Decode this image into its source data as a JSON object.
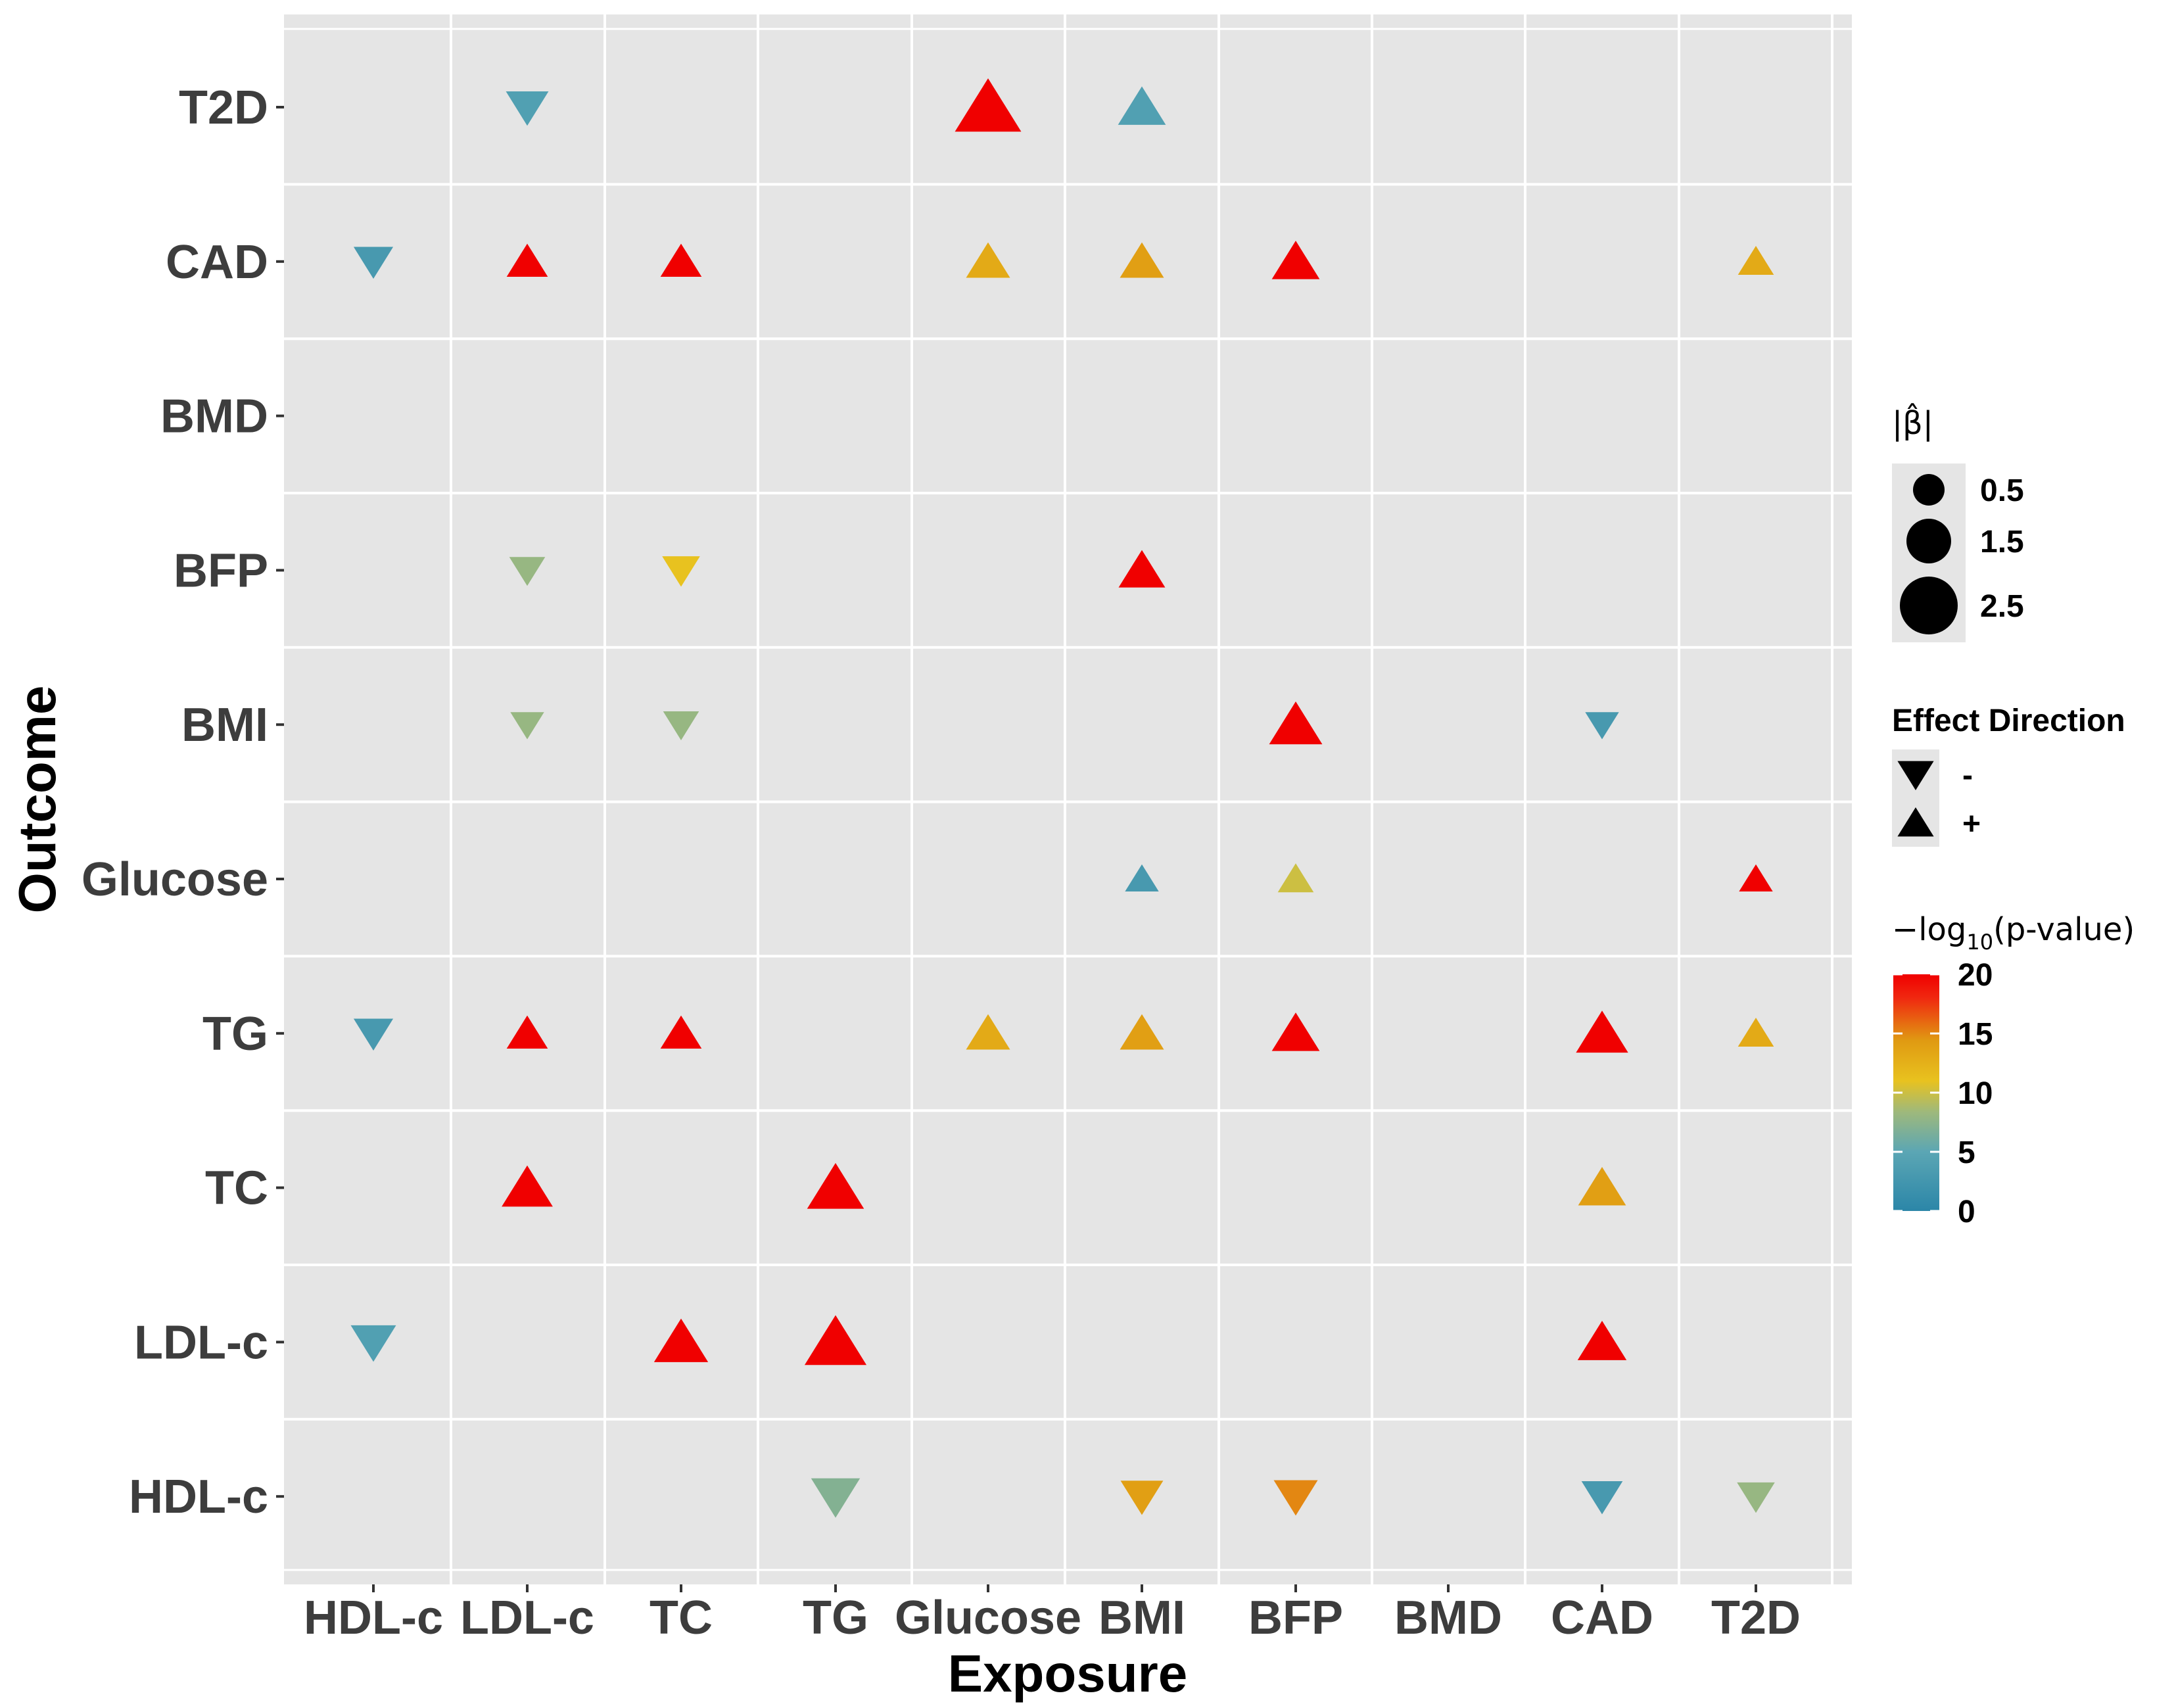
{
  "chart_data": {
    "type": "scatter",
    "subtype": "bubble-matrix",
    "xlabel": "Exposure",
    "ylabel": "Outcome",
    "x_categories": [
      "HDL-c",
      "LDL-c",
      "TC",
      "TG",
      "Glucose",
      "BMI",
      "BFP",
      "BMD",
      "CAD",
      "T2D"
    ],
    "y_categories": [
      "HDL-c",
      "LDL-c",
      "TC",
      "TG",
      "Glucose",
      "BMI",
      "BFP",
      "BMD",
      "CAD",
      "T2D"
    ],
    "points": [
      {
        "exposure": "LDL-c",
        "outcome": "T2D",
        "direction": "-",
        "beta": 0.8,
        "neglog10p": 4
      },
      {
        "exposure": "Glucose",
        "outcome": "T2D",
        "direction": "+",
        "beta": 3.3,
        "neglog10p": 20
      },
      {
        "exposure": "BMI",
        "outcome": "T2D",
        "direction": "+",
        "beta": 1.2,
        "neglog10p": 4
      },
      {
        "exposure": "HDL-c",
        "outcome": "CAD",
        "direction": "-",
        "beta": 0.6,
        "neglog10p": 3
      },
      {
        "exposure": "LDL-c",
        "outcome": "CAD",
        "direction": "+",
        "beta": 0.7,
        "neglog10p": 20
      },
      {
        "exposure": "TC",
        "outcome": "CAD",
        "direction": "+",
        "beta": 0.7,
        "neglog10p": 20
      },
      {
        "exposure": "Glucose",
        "outcome": "CAD",
        "direction": "+",
        "beta": 0.9,
        "neglog10p": 13
      },
      {
        "exposure": "BMI",
        "outcome": "CAD",
        "direction": "+",
        "beta": 0.9,
        "neglog10p": 14
      },
      {
        "exposure": "BFP",
        "outcome": "CAD",
        "direction": "+",
        "beta": 1.2,
        "neglog10p": 20
      },
      {
        "exposure": "T2D",
        "outcome": "CAD",
        "direction": "+",
        "beta": 0.4,
        "neglog10p": 13
      },
      {
        "exposure": "LDL-c",
        "outcome": "BFP",
        "direction": "-",
        "beta": 0.4,
        "neglog10p": 8
      },
      {
        "exposure": "TC",
        "outcome": "BFP",
        "direction": "-",
        "beta": 0.5,
        "neglog10p": 11
      },
      {
        "exposure": "BMI",
        "outcome": "BFP",
        "direction": "+",
        "beta": 1.1,
        "neglog10p": 20
      },
      {
        "exposure": "LDL-c",
        "outcome": "BMI",
        "direction": "-",
        "beta": 0.3,
        "neglog10p": 8
      },
      {
        "exposure": "TC",
        "outcome": "BMI",
        "direction": "-",
        "beta": 0.4,
        "neglog10p": 8
      },
      {
        "exposure": "BFP",
        "outcome": "BMI",
        "direction": "+",
        "beta": 1.7,
        "neglog10p": 20
      },
      {
        "exposure": "CAD",
        "outcome": "BMI",
        "direction": "-",
        "beta": 0.3,
        "neglog10p": 3
      },
      {
        "exposure": "BMI",
        "outcome": "Glucose",
        "direction": "+",
        "beta": 0.3,
        "neglog10p": 3
      },
      {
        "exposure": "BFP",
        "outcome": "Glucose",
        "direction": "+",
        "beta": 0.4,
        "neglog10p": 10
      },
      {
        "exposure": "T2D",
        "outcome": "Glucose",
        "direction": "+",
        "beta": 0.3,
        "neglog10p": 20
      },
      {
        "exposure": "HDL-c",
        "outcome": "TG",
        "direction": "-",
        "beta": 0.6,
        "neglog10p": 3
      },
      {
        "exposure": "LDL-c",
        "outcome": "TG",
        "direction": "+",
        "beta": 0.7,
        "neglog10p": 20
      },
      {
        "exposure": "TC",
        "outcome": "TG",
        "direction": "+",
        "beta": 0.7,
        "neglog10p": 20
      },
      {
        "exposure": "Glucose",
        "outcome": "TG",
        "direction": "+",
        "beta": 0.9,
        "neglog10p": 13
      },
      {
        "exposure": "BMI",
        "outcome": "TG",
        "direction": "+",
        "beta": 0.9,
        "neglog10p": 14
      },
      {
        "exposure": "BFP",
        "outcome": "TG",
        "direction": "+",
        "beta": 1.2,
        "neglog10p": 20
      },
      {
        "exposure": "CAD",
        "outcome": "TG",
        "direction": "+",
        "beta": 1.6,
        "neglog10p": 20
      },
      {
        "exposure": "T2D",
        "outcome": "TG",
        "direction": "+",
        "beta": 0.4,
        "neglog10p": 13
      },
      {
        "exposure": "LDL-c",
        "outcome": "TC",
        "direction": "+",
        "beta": 1.5,
        "neglog10p": 20
      },
      {
        "exposure": "TG",
        "outcome": "TC",
        "direction": "+",
        "beta": 2.1,
        "neglog10p": 20
      },
      {
        "exposure": "CAD",
        "outcome": "TC",
        "direction": "+",
        "beta": 1.2,
        "neglog10p": 14
      },
      {
        "exposure": "HDL-c",
        "outcome": "LDL-c",
        "direction": "-",
        "beta": 1.0,
        "neglog10p": 4
      },
      {
        "exposure": "TC",
        "outcome": "LDL-c",
        "direction": "+",
        "beta": 1.8,
        "neglog10p": 20
      },
      {
        "exposure": "TG",
        "outcome": "LDL-c",
        "direction": "+",
        "beta": 2.7,
        "neglog10p": 20
      },
      {
        "exposure": "CAD",
        "outcome": "LDL-c",
        "direction": "+",
        "beta": 1.3,
        "neglog10p": 20
      },
      {
        "exposure": "TG",
        "outcome": "HDL-c",
        "direction": "-",
        "beta": 1.3,
        "neglog10p": 7
      },
      {
        "exposure": "BMI",
        "outcome": "HDL-c",
        "direction": "-",
        "beta": 0.8,
        "neglog10p": 14
      },
      {
        "exposure": "BFP",
        "outcome": "HDL-c",
        "direction": "-",
        "beta": 0.9,
        "neglog10p": 15
      },
      {
        "exposure": "CAD",
        "outcome": "HDL-c",
        "direction": "-",
        "beta": 0.7,
        "neglog10p": 3
      },
      {
        "exposure": "T2D",
        "outcome": "HDL-c",
        "direction": "-",
        "beta": 0.5,
        "neglog10p": 8
      }
    ],
    "legend": {
      "size": {
        "title": "|β̂|",
        "entries": [
          {
            "label": "0.5",
            "value": 0.5
          },
          {
            "label": "1.5",
            "value": 1.5
          },
          {
            "label": "2.5",
            "value": 2.5
          }
        ]
      },
      "shape": {
        "title": "Effect Direction",
        "entries": [
          {
            "label": "-",
            "direction": "-"
          },
          {
            "label": "+",
            "direction": "+"
          }
        ]
      },
      "color": {
        "title_prefix": "−log",
        "title_sub": "10",
        "title_suffix": "(p-value)",
        "range": [
          0,
          20
        ],
        "ticks": [
          "0",
          "5",
          "10",
          "15",
          "20"
        ],
        "stops": [
          "#2b86a8",
          "#5ba6b4",
          "#9fb97b",
          "#e8c21f",
          "#e09a12",
          "#f02810",
          "#f00000"
        ]
      }
    },
    "colors": {
      "panel_background": "#e5e5e5",
      "grid": "#ffffff"
    },
    "grid": true,
    "legend_position": "right"
  }
}
